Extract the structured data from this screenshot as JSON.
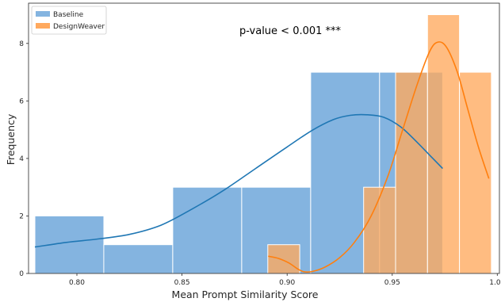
{
  "chart_data": {
    "type": "bar",
    "xlabel": "Mean Prompt Similarity Score",
    "ylabel": "Frequency",
    "annotation": "p-value < 0.001 ***",
    "xlim": [
      0.777,
      1.001
    ],
    "ylim": [
      0,
      9.4
    ],
    "xticks": [
      "0.80",
      "0.85",
      "0.90",
      "0.95",
      "1.00"
    ],
    "xtick_values": [
      0.8,
      0.85,
      0.9,
      0.95,
      1.0
    ],
    "yticks": [
      "0",
      "2",
      "4",
      "6",
      "8"
    ],
    "ytick_values": [
      0,
      2,
      4,
      6,
      8
    ],
    "grid": false,
    "legend_position": "top-left",
    "series": [
      {
        "name": "Baseline",
        "color": "#5b9bd5",
        "line_color": "#1f77b4",
        "bins": [
          {
            "x0": 0.78,
            "x1": 0.8128,
            "count": 2
          },
          {
            "x0": 0.8128,
            "x1": 0.8456,
            "count": 1
          },
          {
            "x0": 0.8456,
            "x1": 0.8784,
            "count": 3
          },
          {
            "x0": 0.8784,
            "x1": 0.9112,
            "count": 3
          },
          {
            "x0": 0.9112,
            "x1": 0.944,
            "count": 7
          },
          {
            "x0": 0.944,
            "x1": 0.974,
            "count": 7
          }
        ],
        "kde": [
          [
            0.78,
            0.92
          ],
          [
            0.795,
            1.08
          ],
          [
            0.81,
            1.2
          ],
          [
            0.825,
            1.36
          ],
          [
            0.84,
            1.68
          ],
          [
            0.855,
            2.25
          ],
          [
            0.87,
            2.9
          ],
          [
            0.885,
            3.65
          ],
          [
            0.9,
            4.4
          ],
          [
            0.912,
            4.98
          ],
          [
            0.922,
            5.35
          ],
          [
            0.93,
            5.5
          ],
          [
            0.938,
            5.52
          ],
          [
            0.946,
            5.43
          ],
          [
            0.954,
            5.1
          ],
          [
            0.962,
            4.55
          ],
          [
            0.968,
            4.1
          ],
          [
            0.974,
            3.65
          ]
        ]
      },
      {
        "name": "DesignWeaver",
        "color": "#ffa95e",
        "line_color": "#ff7f0e",
        "bins": [
          {
            "x0": 0.8908,
            "x1": 0.906,
            "count": 1
          },
          {
            "x0": 0.9364,
            "x1": 0.9516,
            "count": 3
          },
          {
            "x0": 0.9516,
            "x1": 0.9668,
            "count": 7
          },
          {
            "x0": 0.9668,
            "x1": 0.982,
            "count": 9
          },
          {
            "x0": 0.982,
            "x1": 0.9972,
            "count": 7
          }
        ],
        "kde": [
          [
            0.891,
            0.6
          ],
          [
            0.896,
            0.52
          ],
          [
            0.901,
            0.36
          ],
          [
            0.905,
            0.16
          ],
          [
            0.908,
            0.06
          ],
          [
            0.912,
            0.07
          ],
          [
            0.918,
            0.22
          ],
          [
            0.925,
            0.55
          ],
          [
            0.932,
            1.08
          ],
          [
            0.94,
            2.0
          ],
          [
            0.948,
            3.4
          ],
          [
            0.955,
            5.0
          ],
          [
            0.962,
            6.6
          ],
          [
            0.968,
            7.75
          ],
          [
            0.972,
            8.05
          ],
          [
            0.976,
            7.85
          ],
          [
            0.981,
            7.0
          ],
          [
            0.986,
            5.7
          ],
          [
            0.991,
            4.4
          ],
          [
            0.996,
            3.3
          ]
        ]
      }
    ]
  }
}
